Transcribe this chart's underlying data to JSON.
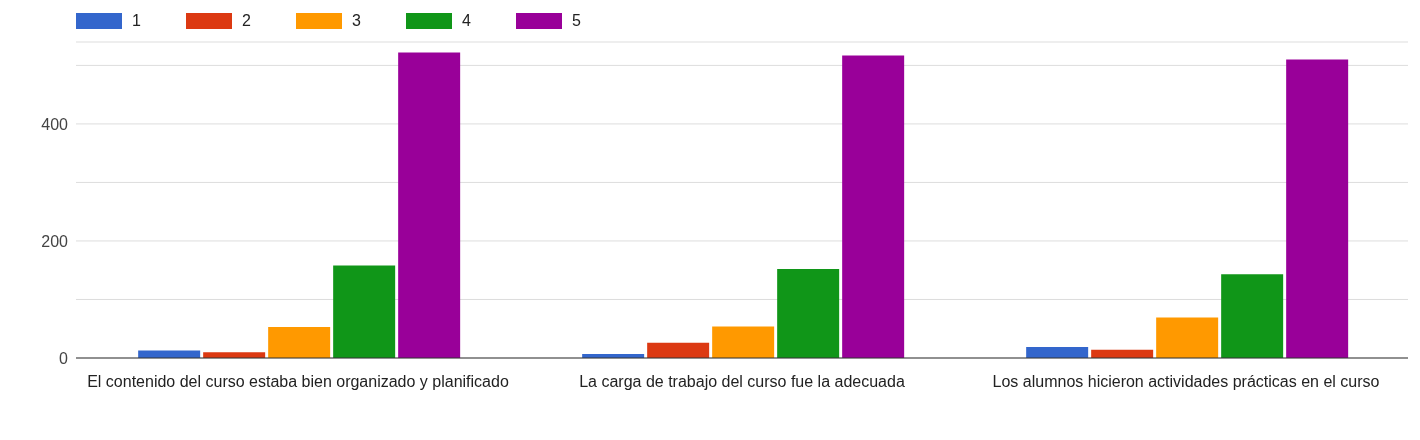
{
  "chart_data": {
    "type": "bar",
    "categories": [
      "El contenido del curso estaba bien organizado y planificado",
      "La carga de trabajo del curso fue la adecuada",
      "Los alumnos hicieron actividades prácticas en el curso"
    ],
    "series": [
      {
        "name": "1",
        "color": "#3366cc",
        "values": [
          13,
          7,
          19
        ]
      },
      {
        "name": "2",
        "color": "#dc3912",
        "values": [
          10,
          26,
          14
        ]
      },
      {
        "name": "3",
        "color": "#ff9900",
        "values": [
          53,
          54,
          69
        ]
      },
      {
        "name": "4",
        "color": "#109618",
        "values": [
          158,
          152,
          143
        ]
      },
      {
        "name": "5",
        "color": "#990099",
        "values": [
          522,
          517,
          510
        ]
      }
    ],
    "ylim": [
      0,
      540
    ],
    "yticks": [
      0,
      {
        "value": 100,
        "label": null
      },
      200,
      {
        "value": 300,
        "label": null
      },
      400,
      {
        "value": 500,
        "label": null
      }
    ],
    "grid": "y",
    "legend": "top left"
  }
}
